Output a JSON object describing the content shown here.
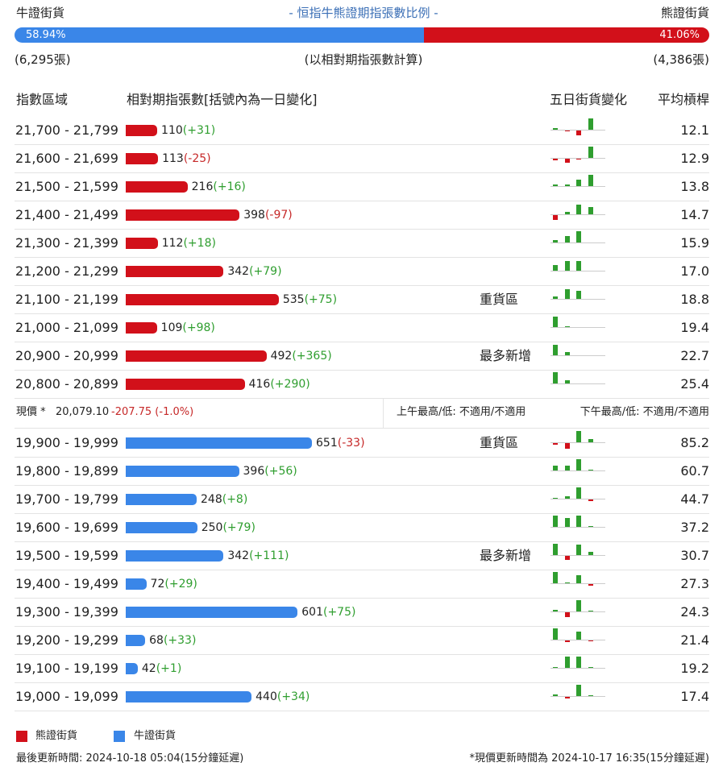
{
  "header": {
    "bull_label": "牛證街貨",
    "title": "- 恒指牛熊證期指張數比例 -",
    "bear_label": "熊證街貨"
  },
  "ratio": {
    "bull": {
      "value": 58.94,
      "label": "58.94%"
    },
    "bear": {
      "value": 41.06,
      "label": "41.06%"
    },
    "bull_color": "#3a86e8",
    "bear_color": "#d2101a"
  },
  "totals": {
    "bull": "(6,295張)",
    "note": "(以相對期指張數計算)",
    "bear": "(4,386張)"
  },
  "columns": [
    "指數區域",
    "相對期指張數[括號內為一日變化]",
    "五日街貨變化",
    "平均槓桿"
  ],
  "bear_rows": [
    {
      "range": "21,700 - 21,799",
      "contracts": 110,
      "change": "(+31)",
      "five_day": [
        2,
        -1,
        -6,
        14,
        0
      ],
      "leverage": "12.1"
    },
    {
      "range": "21,600 - 21,699",
      "contracts": 113,
      "change": "(-25)",
      "five_day": [
        -2,
        -5,
        -1,
        14,
        0
      ],
      "leverage": "12.9"
    },
    {
      "range": "21,500 - 21,599",
      "contracts": 216,
      "change": "(+16)",
      "five_day": [
        2,
        2,
        8,
        14,
        0
      ],
      "leverage": "13.8"
    },
    {
      "range": "21,400 - 21,499",
      "contracts": 398,
      "change": "(-97)",
      "five_day": [
        -6,
        3,
        12,
        9,
        0
      ],
      "leverage": "14.7"
    },
    {
      "range": "21,300 - 21,399",
      "contracts": 112,
      "change": "(+18)",
      "five_day": [
        3,
        8,
        14,
        0,
        0
      ],
      "leverage": "15.9"
    },
    {
      "range": "21,200 - 21,299",
      "contracts": 342,
      "change": "(+79)",
      "five_day": [
        7,
        12,
        12,
        0,
        0
      ],
      "leverage": "17.0"
    },
    {
      "range": "21,100 - 21,199",
      "contracts": 535,
      "change": "(+75)",
      "tag": "重貨區",
      "five_day": [
        3,
        12,
        10,
        0,
        0
      ],
      "leverage": "18.8"
    },
    {
      "range": "21,000 - 21,099",
      "contracts": 109,
      "change": "(+98)",
      "five_day": [
        13,
        1,
        0,
        0,
        0
      ],
      "leverage": "19.4"
    },
    {
      "range": "20,900 - 20,999",
      "contracts": 492,
      "change": "(+365)",
      "tag": "最多新增",
      "five_day": [
        13,
        4,
        0,
        0,
        0
      ],
      "leverage": "22.7"
    },
    {
      "range": "20,800 - 20,899",
      "contracts": 416,
      "change": "(+290)",
      "five_day": [
        14,
        4,
        0,
        0,
        0
      ],
      "leverage": "25.4"
    }
  ],
  "price": {
    "label": "現價 *",
    "value": "20,079.10",
    "change": "-207.75 (-1.0%)",
    "morning": "上午最高/低: 不適用/不適用",
    "afternoon": "下午最高/低: 不適用/不適用"
  },
  "bull_rows": [
    {
      "range": "19,900 - 19,999",
      "contracts": 651,
      "change": "(-33)",
      "tag": "重貨區",
      "five_day": [
        -2,
        -7,
        14,
        4,
        0
      ],
      "leverage": "85.2"
    },
    {
      "range": "19,800 - 19,899",
      "contracts": 396,
      "change": "(+56)",
      "five_day": [
        6,
        6,
        14,
        1,
        0
      ],
      "leverage": "60.7"
    },
    {
      "range": "19,700 - 19,799",
      "contracts": 248,
      "change": "(+8)",
      "five_day": [
        1,
        3,
        14,
        -2,
        0
      ],
      "leverage": "44.7"
    },
    {
      "range": "19,600 - 19,699",
      "contracts": 250,
      "change": "(+79)",
      "five_day": [
        14,
        11,
        14,
        1,
        0
      ],
      "leverage": "37.2"
    },
    {
      "range": "19,500 - 19,599",
      "contracts": 342,
      "change": "(+111)",
      "tag": "最多新增",
      "five_day": [
        14,
        -5,
        13,
        4,
        0
      ],
      "leverage": "30.7"
    },
    {
      "range": "19,400 - 19,499",
      "contracts": 72,
      "change": "(+29)",
      "five_day": [
        14,
        1,
        10,
        -2,
        0
      ],
      "leverage": "27.3"
    },
    {
      "range": "19,300 - 19,399",
      "contracts": 601,
      "change": "(+75)",
      "five_day": [
        2,
        -6,
        14,
        1,
        0
      ],
      "leverage": "24.3"
    },
    {
      "range": "19,200 - 19,299",
      "contracts": 68,
      "change": "(+33)",
      "five_day": [
        14,
        -2,
        10,
        -1,
        0
      ],
      "leverage": "21.4"
    },
    {
      "range": "19,100 - 19,199",
      "contracts": 42,
      "change": "(+1)",
      "five_day": [
        1,
        14,
        14,
        1,
        0
      ],
      "leverage": "19.2"
    },
    {
      "range": "19,000 - 19,099",
      "contracts": 440,
      "change": "(+34)",
      "five_day": [
        2,
        -2,
        14,
        1,
        0
      ],
      "leverage": "17.4"
    }
  ],
  "legend": [
    {
      "label": "熊證街貨"
    },
    {
      "label": "牛證街貨"
    }
  ],
  "footer": {
    "updated": "最後更新時間: 2024-10-18 05:04(15分鐘延遲)",
    "price_updated": "*現價更新時間為 2024-10-17 16:35(15分鐘延遲)"
  }
}
